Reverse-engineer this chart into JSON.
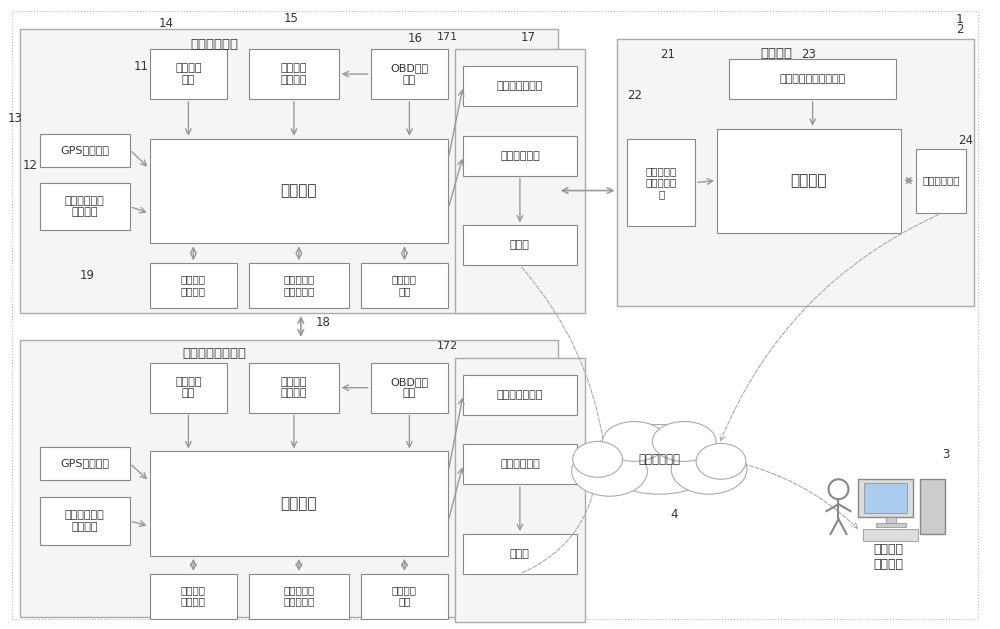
{
  "bg_color": "#ffffff",
  "ec_outer": "#aaaaaa",
  "ec_inner": "#888888",
  "ec_dashed": "#aaaaaa",
  "text_color": "#333333",
  "arrow_color": "#999999",
  "label_1": "1",
  "label_2": "2",
  "label_3": "3",
  "label_4": "4",
  "label_11": "11",
  "label_12": "12",
  "label_13": "13",
  "label_14": "14",
  "label_15": "15",
  "label_16": "16",
  "label_17": "17",
  "label_171": "171",
  "label_172": "172",
  "label_18": "18",
  "label_19": "19",
  "label_21": "21",
  "label_22": "22",
  "label_23": "23",
  "label_24": "24",
  "title_box1": "本车车载设备",
  "title_box2": "路侧设备",
  "title_box3": "其他车辆车载设备",
  "mod_speed_collect": "车速采集\n模块",
  "mod_drive_intent": "行驶意图\n采集模块",
  "mod_obd": "OBD接口\n模块",
  "mod_gps": "GPS定位模块",
  "mod_veh_info": "车辆基本信息\n储存模块",
  "mod_main": "主控模块",
  "mod_veh_wireless": "车载无线\n通信模块",
  "mod_veh_order": "车辆通行顺\n序决策模块",
  "mod_speed_ctrl": "车速控制\n模块",
  "mod_display": "车速信息显示屏",
  "mod_audio": "语音播放模块",
  "mod_speaker": "扩声器",
  "mod_road_order": "车辆通行顺序决策模块",
  "mod_intersection": "交叉口基本\n信息储存模\n块",
  "mod_road_main": "主控模块",
  "mod_road_wireless": "无线通信模块",
  "cloud_text": "无线通信网络",
  "city_text": "城市交通\n管控中心"
}
